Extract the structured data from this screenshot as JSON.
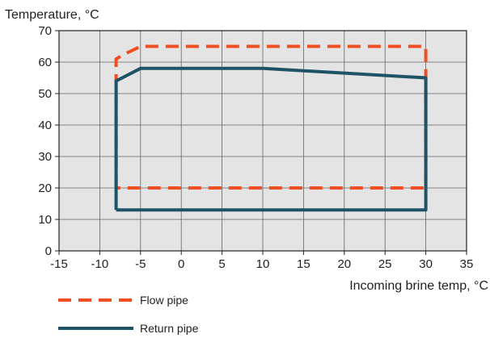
{
  "chart_data": {
    "type": "line",
    "ylabel": "Temperature, °C",
    "xlabel": "Incoming brine temp, °C",
    "xlim": [
      -15,
      35
    ],
    "ylim": [
      0,
      70
    ],
    "x_ticks": [
      -15,
      -10,
      -5,
      0,
      5,
      10,
      15,
      20,
      25,
      30,
      35
    ],
    "y_ticks": [
      0,
      10,
      20,
      30,
      40,
      50,
      60,
      70
    ],
    "grid": true,
    "legend_position": "bottom-left",
    "series": [
      {
        "name": "Flow pipe",
        "color": "#f04e23",
        "style": "dashed",
        "points": [
          [
            -8,
            20
          ],
          [
            -8,
            61
          ],
          [
            -7,
            62.5
          ],
          [
            -5,
            65
          ],
          [
            30,
            65
          ],
          [
            30,
            20
          ],
          [
            -8,
            20
          ]
        ]
      },
      {
        "name": "Return pipe",
        "color": "#1e5366",
        "style": "solid",
        "points": [
          [
            -8,
            13
          ],
          [
            -8,
            54
          ],
          [
            -5,
            58
          ],
          [
            10,
            58
          ],
          [
            30,
            55
          ],
          [
            30,
            13
          ],
          [
            -8,
            13
          ]
        ]
      }
    ]
  }
}
